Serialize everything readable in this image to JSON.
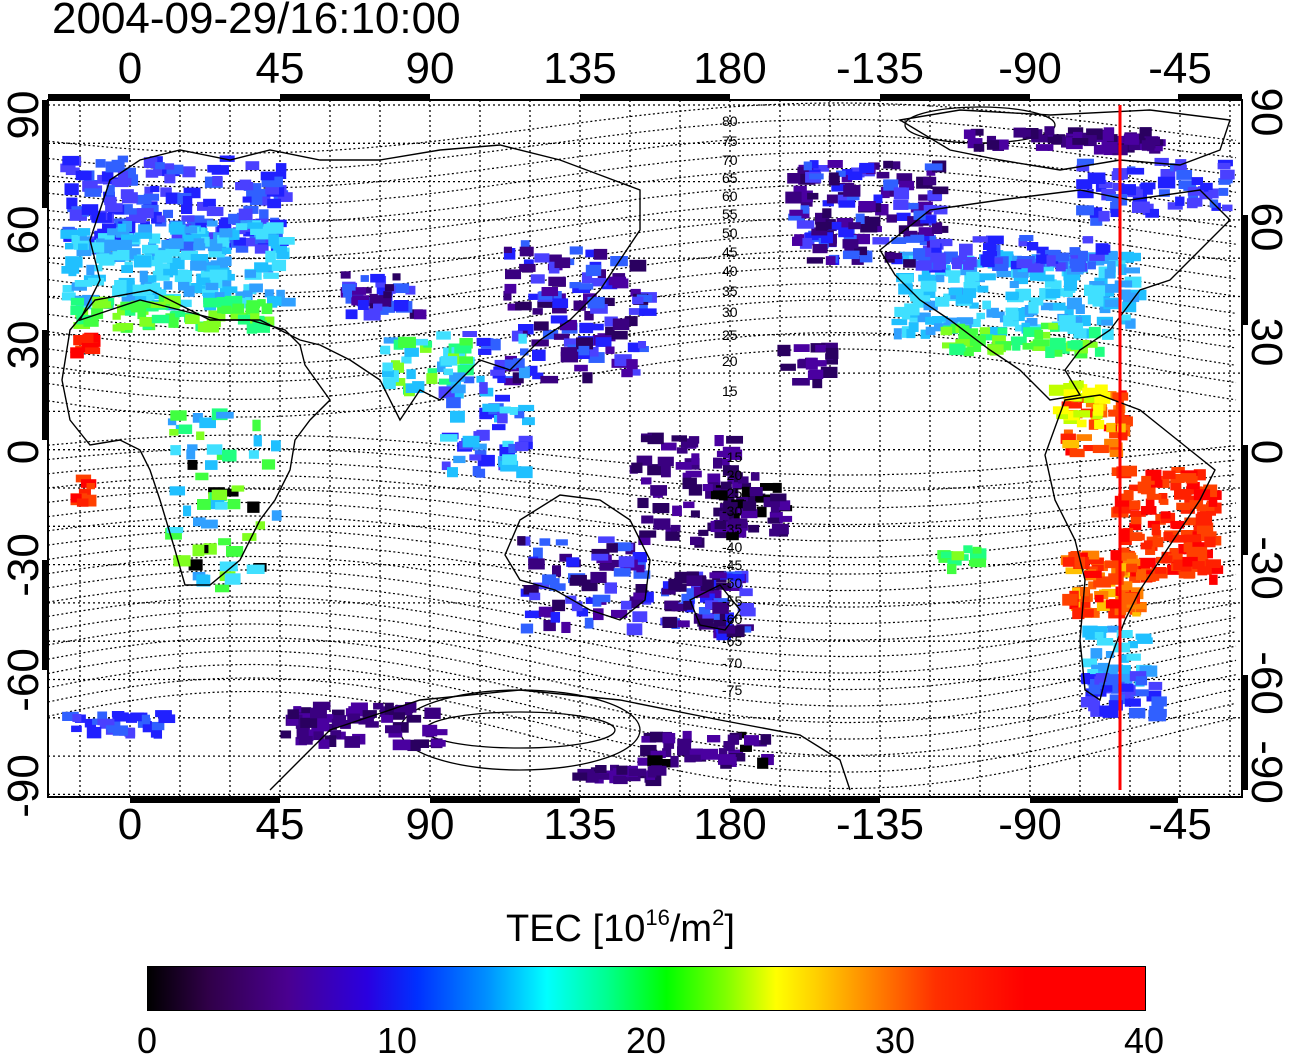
{
  "title": "2004-09-29/16:10:00",
  "top_axis_ticks": [
    "0",
    "45",
    "90",
    "135",
    "180",
    "-135",
    "-90",
    "-45"
  ],
  "bottom_axis_ticks": [
    "0",
    "45",
    "90",
    "135",
    "180",
    "-135",
    "-90",
    "-45"
  ],
  "lat_ticks": [
    "90",
    "60",
    "30",
    "0",
    "-30",
    "-60",
    "-90"
  ],
  "contour_labels": [
    "80",
    "75",
    "70",
    "65",
    "60",
    "55",
    "50",
    "45",
    "40",
    "35",
    "30",
    "25",
    "20",
    "15",
    "-15",
    "-20",
    "-25",
    "-30",
    "-35",
    "-40",
    "-45",
    "-50",
    "-55",
    "-60",
    "-65",
    "-70",
    "-75"
  ],
  "colorbar": {
    "title_prefix": "TEC  [10",
    "title_exp1": "16",
    "title_mid": "/m",
    "title_exp2": "2",
    "title_suffix": "]",
    "ticks": [
      "0",
      "10",
      "20",
      "30",
      "40"
    ]
  },
  "colors": {
    "marker_line": "#ff0000",
    "colormap": [
      "#000000",
      "#4a0090",
      "#0030ff",
      "#00ffff",
      "#00ff00",
      "#ffff00",
      "#ff8000",
      "#ff0000"
    ]
  }
}
